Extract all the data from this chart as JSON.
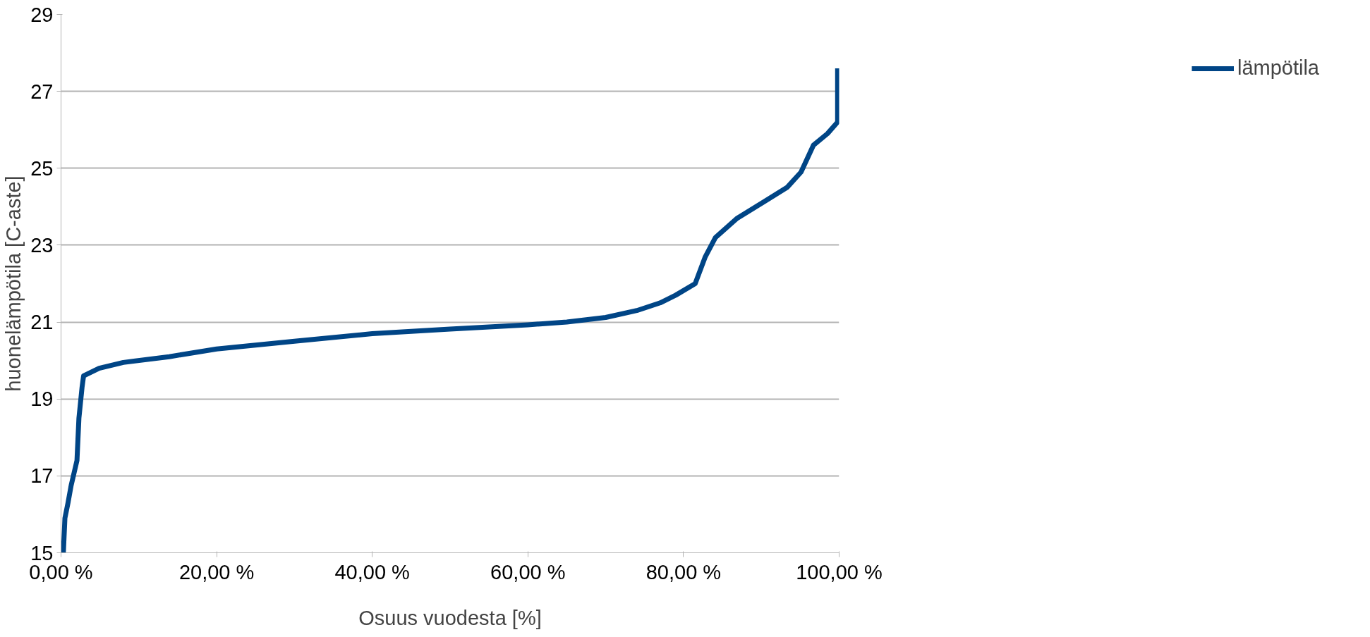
{
  "chart_data": {
    "type": "line",
    "xlabel": "Osuus vuodesta [%]",
    "ylabel": "huonelämpötila [C-aste]",
    "xlim": [
      0,
      100
    ],
    "xticks": [
      {
        "value": 0,
        "label": "0,00 %"
      },
      {
        "value": 20,
        "label": "20,00 %"
      },
      {
        "value": 40,
        "label": "40,00 %"
      },
      {
        "value": 60,
        "label": "60,00 %"
      },
      {
        "value": 80,
        "label": "80,00 %"
      },
      {
        "value": 100,
        "label": "100,00 %"
      }
    ],
    "ylim": [
      15,
      29
    ],
    "yticks": [
      15,
      17,
      19,
      21,
      23,
      25,
      27,
      29
    ],
    "grid": "y",
    "legend": "right",
    "marker": "none",
    "line_style": "solid",
    "series": [
      {
        "name": "lämpötila",
        "color": "#004586",
        "x": [
          0.3,
          0.5,
          0.9,
          1.3,
          2.05,
          2.3,
          2.7,
          2.9,
          4.9,
          8,
          13.9,
          20,
          30,
          40,
          50,
          60,
          65,
          70,
          74,
          77,
          79,
          81.5,
          82.8,
          84.1,
          86.9,
          90.5,
          93.3,
          95.1,
          96.7,
          98.5,
          99.8,
          99.8
        ],
        "values": [
          15.0,
          15.9,
          16.3,
          16.75,
          17.4,
          18.5,
          19.3,
          19.6,
          19.8,
          19.95,
          20.1,
          20.3,
          20.5,
          20.7,
          20.82,
          20.93,
          21.0,
          21.12,
          21.3,
          21.5,
          21.7,
          22.0,
          22.7,
          23.2,
          23.7,
          24.15,
          24.5,
          24.9,
          25.6,
          25.9,
          26.2,
          27.6
        ]
      }
    ]
  }
}
